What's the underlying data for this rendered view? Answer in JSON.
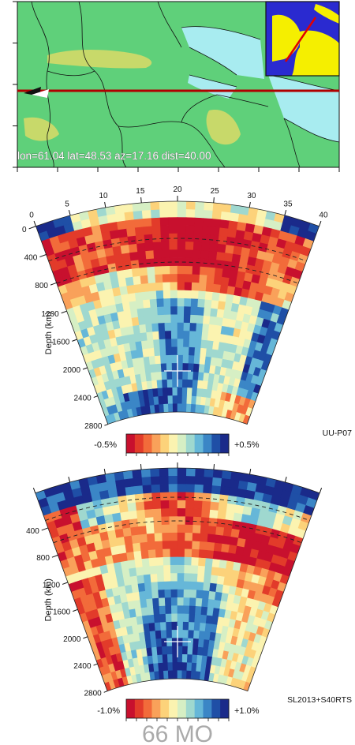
{
  "map": {
    "info_text": "lon=61.04 lat=48.53 az=17.16 dist=40.00",
    "colors": {
      "land": "#5fd07a",
      "highland": "#c8d96a",
      "sea": "#a8ecf0",
      "track": "#b00000"
    }
  },
  "inset": {
    "colors": {
      "land": "#f5ef00",
      "ocean": "#2a2ad0",
      "track": "#e00000"
    }
  },
  "distance_axis": {
    "ticks": [
      "0",
      "5",
      "10",
      "15",
      "20",
      "25",
      "30",
      "35",
      "40"
    ]
  },
  "panel1": {
    "depth_label": "Depth (km)",
    "depth_ticks": [
      "0",
      "400",
      "800",
      "1200",
      "1600",
      "2000",
      "2400",
      "2800"
    ],
    "model_name": "UU-P07",
    "scale_min": "-0.5%",
    "scale_max": "+0.5%"
  },
  "panel2": {
    "depth_label": "Depth (km)",
    "depth_ticks": [
      "400",
      "800",
      "1200",
      "1600",
      "2000",
      "2400",
      "2800"
    ],
    "model_name": "SL2013+S40RTS",
    "scale_min": "-1.0%",
    "scale_max": "+1.0%"
  },
  "footer": {
    "text": "66 MO"
  },
  "palette": [
    "#c8102e",
    "#e23b2a",
    "#f26b3a",
    "#f9a15a",
    "#fcd27a",
    "#fbf3b0",
    "#d6efc4",
    "#9fd8cf",
    "#66b7d8",
    "#3b86c6",
    "#1f4fa6",
    "#1a2a8a"
  ]
}
